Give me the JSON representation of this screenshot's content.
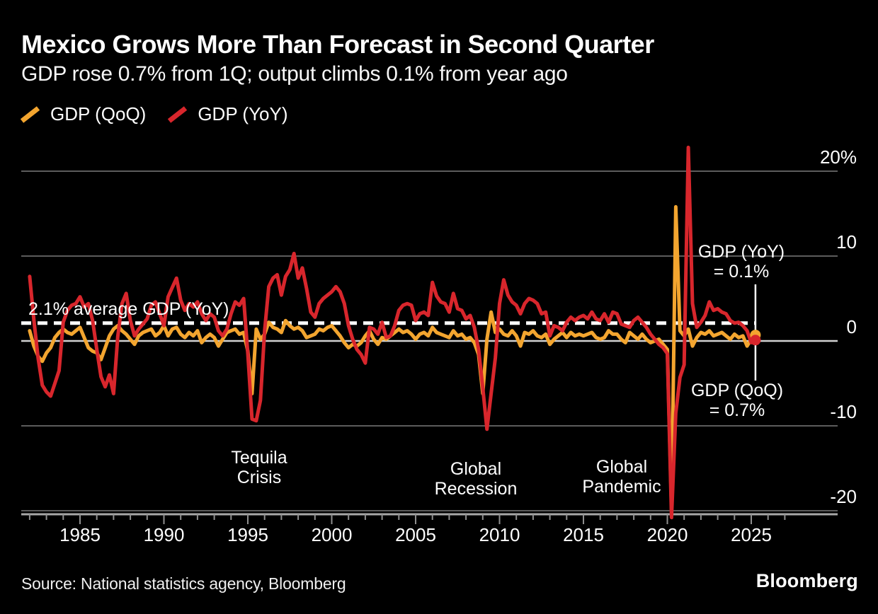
{
  "header": {
    "title": "Mexico Grows More Than Forecast in Second Quarter",
    "subtitle": "GDP rose 0.7% from 1Q; output climbs 0.1% from year ago"
  },
  "legend": [
    {
      "label": "GDP (QoQ)",
      "color": "#F3A52F"
    },
    {
      "label": "GDP (YoY)",
      "color": "#D8262C"
    }
  ],
  "annotations": {
    "average_line_label": "2.1% average GDP (YoY)",
    "tequila": [
      "Tequila",
      "Crisis"
    ],
    "recession": [
      "Global",
      "Recession"
    ],
    "pandemic": [
      "Global",
      "Pandemic"
    ],
    "yoy_callout": [
      "GDP (YoY)",
      "= 0.1%"
    ],
    "qoq_callout": [
      "GDP (QoQ)",
      "= 0.7%"
    ]
  },
  "source": "Source: National statistics agency, Bloomberg",
  "brand": "Bloomberg",
  "colors": {
    "background": "#000000",
    "qoq_line": "#F3A52F",
    "yoy_line": "#D8262C",
    "grid": "#5c5c5c",
    "zero_line": "#d2d2d2",
    "axis_line": "#a8a8a8",
    "tick": "#8f8f8f",
    "callout_line": "#ffffff",
    "average_dash": "#ffffff",
    "text": "#ffffff"
  },
  "chart_data": {
    "type": "line",
    "frequency": "quarterly",
    "title": "Mexico Grows More Than Forecast in Second Quarter",
    "x_start": {
      "year": 1982,
      "quarter": 1
    },
    "x_end": {
      "year": 2025,
      "quarter": 2
    },
    "average_yoy_pct": 2.1,
    "legend_position": "top-left",
    "grid": "horizontal-only",
    "y_axis": {
      "side": "right",
      "range": [
        -22,
        23
      ],
      "ticks": [
        {
          "v": 20,
          "label": "20%"
        },
        {
          "v": 10,
          "label": "10"
        },
        {
          "v": 0,
          "label": "0"
        },
        {
          "v": -10,
          "label": "-10"
        },
        {
          "v": -20,
          "label": "-20"
        }
      ]
    },
    "x_axis": {
      "minor_tick_from": 1982,
      "minor_tick_to": 2027,
      "major_ticks": [
        {
          "year": 1985,
          "label": "1985"
        },
        {
          "year": 1990,
          "label": "1990"
        },
        {
          "year": 1995,
          "label": "1995"
        },
        {
          "year": 2000,
          "label": "2000"
        },
        {
          "year": 2005,
          "label": "2005"
        },
        {
          "year": 2010,
          "label": "2010"
        },
        {
          "year": 2015,
          "label": "2015"
        },
        {
          "year": 2020,
          "label": "2020"
        },
        {
          "year": 2025,
          "label": "2025"
        }
      ]
    },
    "series": [
      {
        "name": "GDP (QoQ)",
        "color": "#F3A52F",
        "values": [
          1.2,
          -0.6,
          -1.8,
          -2.4,
          -1.4,
          -0.8,
          0.4,
          1.0,
          1.4,
          1.0,
          0.8,
          1.2,
          1.6,
          0.4,
          -0.8,
          -1.2,
          -1.4,
          -2.2,
          -0.8,
          0.6,
          1.4,
          1.8,
          1.2,
          0.8,
          0.2,
          -0.4,
          0.6,
          1.0,
          1.2,
          1.4,
          0.6,
          1.0,
          1.8,
          0.6,
          1.4,
          1.6,
          0.8,
          0.4,
          1.0,
          0.6,
          1.2,
          -0.2,
          0.4,
          0.8,
          0.4,
          -0.6,
          0.2,
          1.0,
          1.2,
          1.4,
          0.8,
          1.0,
          -1.2,
          -6.2,
          1.4,
          0.2,
          0.8,
          2.2,
          1.6,
          1.4,
          1.0,
          2.4,
          1.8,
          1.4,
          1.6,
          1.2,
          0.4,
          0.6,
          0.8,
          1.4,
          1.2,
          1.6,
          1.8,
          1.2,
          0.6,
          -0.2,
          -0.8,
          -0.4,
          -0.6,
          -0.2,
          0.6,
          1.2,
          0.2,
          -0.4,
          0.4,
          0.2,
          0.6,
          1.0,
          1.4,
          1.0,
          1.2,
          0.8,
          0.2,
          0.8,
          1.0,
          0.6,
          1.6,
          1.0,
          0.8,
          0.6,
          0.4,
          1.2,
          0.6,
          0.8,
          0.2,
          0.4,
          -0.2,
          -1.6,
          -6.2,
          0.2,
          3.4,
          1.0,
          1.4,
          0.8,
          0.6,
          1.2,
          0.6,
          -0.6,
          1.0,
          0.8,
          1.2,
          0.6,
          0.4,
          0.8,
          -0.4,
          0.2,
          0.6,
          1.0,
          0.4,
          1.0,
          0.6,
          0.8,
          0.6,
          0.8,
          1.0,
          0.4,
          0.2,
          0.4,
          1.2,
          0.8,
          0.8,
          0.2,
          -0.2,
          1.0,
          0.6,
          0.2,
          0.8,
          0.2,
          -0.2,
          0.0,
          0.2,
          -0.4,
          -1.0,
          -19.8,
          15.8,
          1.2,
          0.6,
          1.4,
          -0.6,
          0.4,
          1.0,
          0.8,
          1.2,
          0.6,
          0.8,
          1.0,
          0.6,
          0.2,
          0.8,
          0.4,
          0.6,
          -0.6,
          0.2,
          0.7
        ]
      },
      {
        "name": "GDP (YoY)",
        "color": "#D8262C",
        "values": [
          7.6,
          2.5,
          -2.0,
          -5.2,
          -6.0,
          -6.5,
          -5.0,
          -3.5,
          2.2,
          3.6,
          4.2,
          4.4,
          5.2,
          4.0,
          4.4,
          2.4,
          -1.0,
          -4.2,
          -5.4,
          -4.0,
          -6.2,
          0.5,
          4.4,
          5.6,
          2.4,
          0.6,
          1.4,
          2.0,
          2.6,
          4.2,
          4.6,
          3.2,
          1.8,
          5.2,
          6.3,
          7.4,
          4.8,
          3.6,
          4.4,
          4.0,
          4.6,
          3.2,
          2.4,
          3.2,
          2.8,
          1.2,
          0.6,
          1.4,
          3.2,
          4.6,
          4.2,
          5.0,
          -1.5,
          -9.2,
          -9.4,
          -7.0,
          1.2,
          6.4,
          7.4,
          7.8,
          5.4,
          7.6,
          8.4,
          10.3,
          7.4,
          8.6,
          6.2,
          3.4,
          2.8,
          4.4,
          5.0,
          5.4,
          5.8,
          6.4,
          5.8,
          4.4,
          1.8,
          0.2,
          -1.0,
          -1.6,
          -2.6,
          1.6,
          1.4,
          0.8,
          2.2,
          0.4,
          0.6,
          1.8,
          3.6,
          4.2,
          4.4,
          4.2,
          2.4,
          3.2,
          3.4,
          3.0,
          6.9,
          5.3,
          4.6,
          4.4,
          3.4,
          5.6,
          3.8,
          3.6,
          2.6,
          3.0,
          1.6,
          -1.0,
          -5.5,
          -10.4,
          -6.2,
          -2.0,
          4.4,
          7.2,
          5.4,
          4.6,
          4.2,
          3.2,
          4.4,
          5.0,
          4.8,
          4.4,
          3.2,
          3.4,
          0.6,
          1.8,
          1.6,
          1.2,
          2.2,
          2.8,
          2.4,
          2.8,
          3.0,
          2.6,
          3.4,
          2.6,
          2.4,
          3.2,
          2.2,
          3.4,
          3.2,
          2.0,
          1.8,
          1.6,
          2.4,
          2.8,
          2.2,
          1.6,
          0.8,
          0.2,
          -0.4,
          -0.8,
          -1.5,
          -20.8,
          -8.5,
          -4.3,
          -2.8,
          22.8,
          4.4,
          1.6,
          2.2,
          3.0,
          4.6,
          3.6,
          3.8,
          3.4,
          3.2,
          2.4,
          2.1,
          2.2,
          1.8,
          1.2,
          -0.2,
          0.1
        ]
      }
    ],
    "end_markers": [
      {
        "series": "GDP (QoQ)",
        "value": 0.7
      },
      {
        "series": "GDP (YoY)",
        "value": 0.1
      }
    ]
  }
}
